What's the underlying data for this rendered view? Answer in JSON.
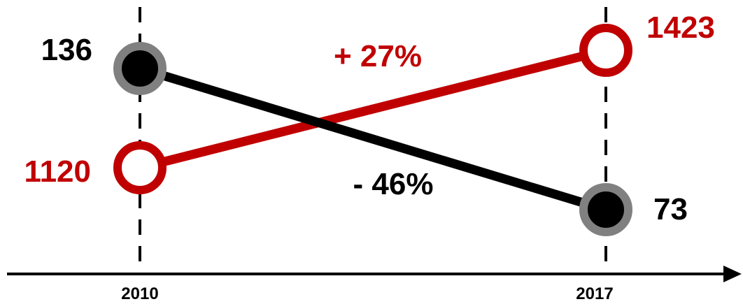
{
  "chart_data": {
    "type": "line",
    "x": [
      "2010",
      "2017"
    ],
    "series": [
      {
        "values": [
          136,
          73
        ],
        "color": "#000000",
        "marker_fill": "#000000",
        "marker_stroke": "#808080",
        "change_label": "- 46%"
      },
      {
        "values": [
          1120,
          1423
        ],
        "color": "#c00000",
        "marker_fill": "#ffffff",
        "marker_stroke": "#c00000",
        "change_label": "+ 27%"
      }
    ],
    "title": "",
    "xlabel": "",
    "ylabel": "",
    "y_axis_shown": false,
    "grid": false
  }
}
